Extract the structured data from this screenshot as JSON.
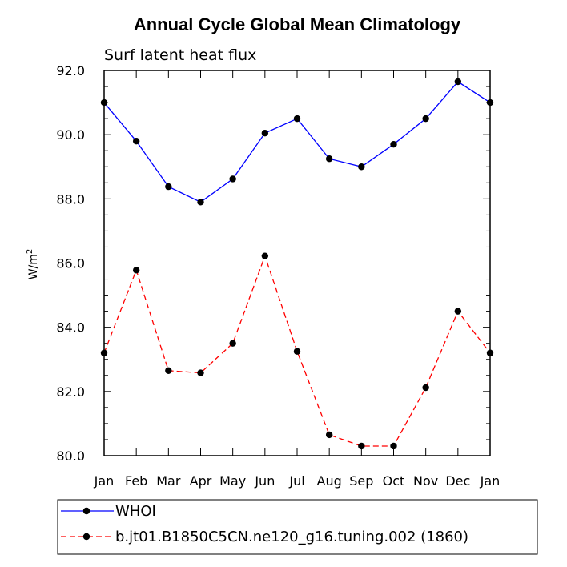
{
  "chart_data": {
    "type": "line",
    "title": "Annual Cycle Global Mean Climatology",
    "subtitle": "Surf latent heat flux",
    "ylabel": "W/m",
    "ylabel_sup": "2",
    "xlabel": "",
    "categories": [
      "Jan",
      "Feb",
      "Mar",
      "Apr",
      "May",
      "Jun",
      "Jul",
      "Aug",
      "Sep",
      "Oct",
      "Nov",
      "Dec",
      "Jan"
    ],
    "ylim": [
      80.0,
      92.0
    ],
    "yticks": [
      80.0,
      82.0,
      84.0,
      86.0,
      88.0,
      90.0,
      92.0
    ],
    "ytick_labels": [
      "80.0",
      "82.0",
      "84.0",
      "86.0",
      "88.0",
      "90.0",
      "92.0"
    ],
    "grid": false,
    "legend_position": "bottom",
    "series": [
      {
        "name": "WHOI",
        "color": "#0000ff",
        "style": "solid",
        "values": [
          91.0,
          89.8,
          88.38,
          87.9,
          88.62,
          90.05,
          90.5,
          89.25,
          89.0,
          89.7,
          90.5,
          91.65,
          91.0
        ]
      },
      {
        "name": "b.jt01.B1850C5CN.ne120_g16.tuning.002 (1860)",
        "color": "#ff0000",
        "style": "dashed",
        "values": [
          83.2,
          85.78,
          82.65,
          82.58,
          83.5,
          86.22,
          83.25,
          80.65,
          80.3,
          80.3,
          82.12,
          84.5,
          83.2
        ]
      }
    ]
  }
}
